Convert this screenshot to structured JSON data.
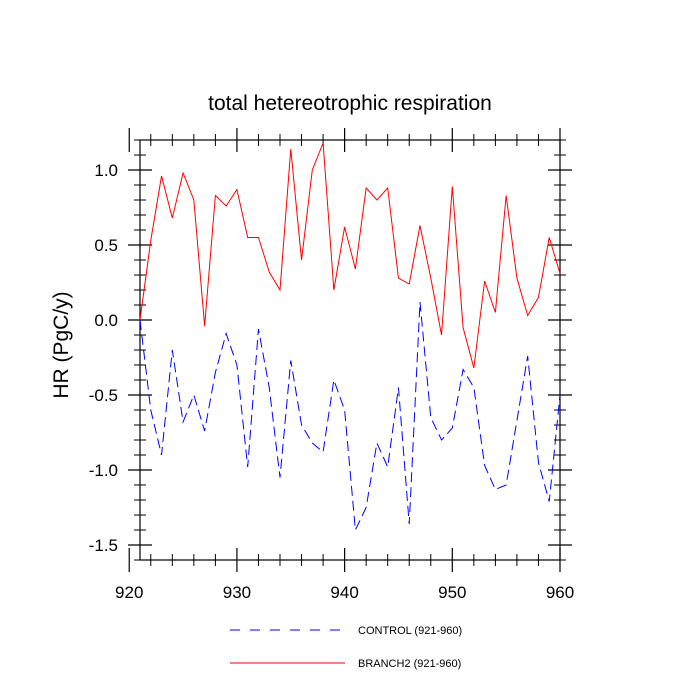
{
  "chart_data": {
    "type": "line",
    "title": "total hetereotrophic respiration",
    "xlabel": "",
    "ylabel": "HR  (PgC/y)",
    "xlim": [
      921,
      960
    ],
    "ylim": [
      -1.6,
      1.2
    ],
    "xticks": [
      920,
      930,
      940,
      950,
      960
    ],
    "xtick_labels": [
      "920",
      "930",
      "940",
      "950",
      "960"
    ],
    "yticks": [
      1.0,
      0.5,
      0.0,
      -0.5,
      -1.0,
      -1.5
    ],
    "ytick_labels": [
      "1.0",
      "0.5",
      "0.0",
      "-0.5",
      "-1.0",
      "-1.5"
    ],
    "legend_position": "bottom",
    "x": [
      921,
      922,
      923,
      924,
      925,
      926,
      927,
      928,
      929,
      930,
      931,
      932,
      933,
      934,
      935,
      936,
      937,
      938,
      939,
      940,
      941,
      942,
      943,
      944,
      945,
      946,
      947,
      948,
      949,
      950,
      951,
      952,
      953,
      954,
      955,
      956,
      957,
      958,
      959,
      960
    ],
    "series": [
      {
        "name": "CONTROL (921-960)",
        "color": "#0000ff",
        "dash": "dashed",
        "values": [
          0.0,
          -0.6,
          -0.9,
          -0.2,
          -0.68,
          -0.5,
          -0.74,
          -0.35,
          -0.09,
          -0.3,
          -0.98,
          -0.06,
          -0.45,
          -1.05,
          -0.27,
          -0.7,
          -0.82,
          -0.88,
          -0.4,
          -0.6,
          -1.4,
          -1.25,
          -0.82,
          -0.98,
          -0.45,
          -1.36,
          0.12,
          -0.65,
          -0.8,
          -0.72,
          -0.33,
          -0.45,
          -0.97,
          -1.13,
          -1.1,
          -0.67,
          -0.24,
          -0.95,
          -1.21,
          -0.5
        ]
      },
      {
        "name": "BRANCH2 (921-960)",
        "color": "#ff0000",
        "dash": "solid",
        "values": [
          0.0,
          0.53,
          0.96,
          0.68,
          0.98,
          0.8,
          -0.04,
          0.83,
          0.76,
          0.87,
          0.55,
          0.55,
          0.32,
          0.2,
          1.14,
          0.4,
          1.0,
          1.18,
          0.2,
          0.62,
          0.34,
          0.88,
          0.8,
          0.88,
          0.28,
          0.24,
          0.63,
          0.28,
          -0.1,
          0.89,
          -0.05,
          -0.32,
          0.26,
          0.05,
          0.83,
          0.28,
          0.03,
          0.15,
          0.55,
          0.31
        ]
      }
    ]
  }
}
